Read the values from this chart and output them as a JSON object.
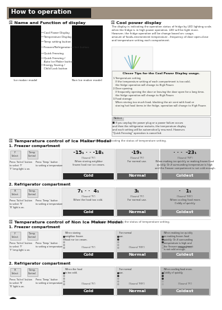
{
  "title": "How to operation",
  "title_bg": "#1a1a1a",
  "title_color": "#ffffff",
  "header_bg": "#9e9080",
  "page_bg": "#ffffff",
  "section1_title": "☒ Name and Function of display",
  "section2_title": "☒ Cool power display",
  "section3_title": "☒ Temperature control of Ice Maker Model",
  "section4_title": "☒ Temperature control of Non Ice Maker Model",
  "section3_sub": "The display is indicating the status of temperature setting.",
  "section4_sub": "The display is indicating the status of temperature setting.",
  "display_labels": [
    "Cool Power Display",
    "Temperature Display",
    "Temp setting button",
    "Freezer/Refrigerator select button",
    "Quick Freezing",
    "Quick Freezing /\nAuto Ice Maker button",
    "Energy Saving /\nChild Lock button"
  ],
  "cool_power_text": "The display is indicating the operation status of fridge by LED lighting scale.\nwhen the fridge is in high power operation, LED will be light more.\nHowever, the fridge operation will be change based on: usage,\namount of foods,environment temperature , frequency of door open-close\nand temperature setting each compartment.",
  "clever_tips_title": "Clever Tips for the Cool Power Display usage.",
  "clever_tips_text": "1.Temperature setting\n   If the temperature setting of each compartment is too cold,\n   the fridge operation will change to High Power.\n2.Door opening\n   If frequently opening the door or leaving the door open for a long time,\n   the fridge operation will change to High Power.\n3.Food storage\n   When storing too much food, blocking the air vent with food or\n   storing hot food items in the fridge, operation will change to High Power.",
  "notice_text": "■ If you unplug the power plug or a power failure occurs\nand then the refrigerator restarts, the temperature display\nand each setting will be automatically resumed. However,\n\"Quick Freezing\" operation is cancelled.",
  "notice_label": "Notice",
  "ice_model_label": "Ice maker model",
  "non_ice_model_label": "Non Ice maker model",
  "freezer_comp_label": "1. Freezer compartment",
  "fridge_comp_label": "2. Refrigerator compartment",
  "cold_label": "Cold",
  "normal_label": "Normal",
  "coldest_label": "Coldest",
  "cold_bg": "#2a2a2a",
  "normal_bg": "#555555",
  "coldest_bg": "#888888",
  "cold_cell_bg": "#e8e8e8",
  "normal_cell_bg": "#d8d8d8",
  "coldest_cell_bg": "#c0c0c0",
  "label_color": "#ffffff",
  "temp_ice_freezer": [
    "-15₁ · · -18₁",
    "-19₁",
    "· · ·  -23₁"
  ],
  "temp_ice_fridge": [
    "7₁ · ·  4₁",
    "3₁",
    "·   1₁"
  ],
  "cold_desc_freezer": "When storing neighbor\nfrozen food nor ice cream.",
  "normal_desc_freezer": "For normal use.",
  "coldest_desc_freezer": "When making ice quickly or making frozen food\nquickly. Or,if surrounding temperature is high\nand the Freezer compartment is not cold enough.",
  "cold_desc_fridge": "When the food too cold.",
  "normal_desc_fridge": "For normal use.",
  "coldest_desc_fridge": "When cooling food more.\nColdly of quickly.",
  "non_cold_desc_freezer": "When storing\nneighbor frozen\nfood nor ice cream.",
  "non_normal_desc_freezer": "For normal\nuse.",
  "non_coldest_desc_freezer": "When making ice quickly\nor making frozen food\nquickly. Or,if surrounding\ntemperature is high and\nthe Freezer compartment\nis not cold enough.",
  "non_cold_desc_fridge": "When the food\nis too cold.",
  "non_normal_desc_fridge": "For normal\nuse.",
  "non_coldest_desc_fridge": "When cooling food more.\nColdly of quickly.",
  "sound_pip": "(Sound 'Pi')",
  "sound_pipi": "(Sound 'PiPi')",
  "sound_pip2": "(Sound 'PiP')",
  "page_number": "8"
}
